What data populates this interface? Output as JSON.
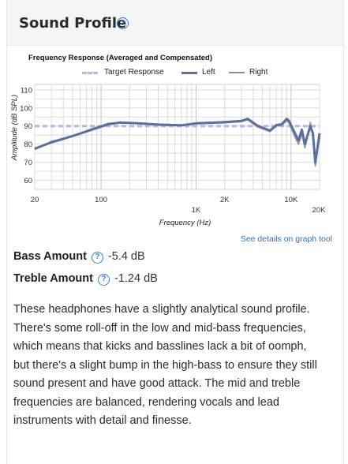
{
  "section": {
    "title": "Sound Profile",
    "help_icon": "question-circle-icon"
  },
  "chart_data": {
    "type": "line",
    "title": "Frequency Response (Averaged and Compensated)",
    "xlabel": "Frequency (Hz)",
    "ylabel": "Amplitude (dB SPL)",
    "x_scale": "log",
    "xlim": [
      20,
      20000
    ],
    "ylim": [
      55,
      113
    ],
    "x_ticks": [
      {
        "value": 20,
        "label": "20"
      },
      {
        "value": 100,
        "label": "100"
      },
      {
        "value": 1000,
        "label": "1K"
      },
      {
        "value": 2000,
        "label": "2K"
      },
      {
        "value": 10000,
        "label": "10K"
      },
      {
        "value": 20000,
        "label": "20K"
      }
    ],
    "y_ticks": [
      60,
      70,
      80,
      90,
      100,
      110
    ],
    "grid": true,
    "legend_position": "top",
    "series": [
      {
        "name": "Target Response",
        "color": "#b9b4ea",
        "style": "dashed",
        "points": [
          [
            20,
            90
          ],
          [
            100,
            90
          ],
          [
            1000,
            90
          ],
          [
            10000,
            90
          ],
          [
            20000,
            90
          ]
        ]
      },
      {
        "name": "Left",
        "color": "#5b6fa3",
        "style": "solid",
        "points": [
          [
            20,
            77.5
          ],
          [
            30,
            81
          ],
          [
            50,
            84.5
          ],
          [
            80,
            88
          ],
          [
            120,
            91
          ],
          [
            160,
            92
          ],
          [
            250,
            91.5
          ],
          [
            400,
            90.8
          ],
          [
            700,
            90.4
          ],
          [
            1000,
            91.5
          ],
          [
            2000,
            92.2
          ],
          [
            3000,
            92.8
          ],
          [
            3500,
            94
          ],
          [
            4500,
            90
          ],
          [
            6000,
            87.5
          ],
          [
            7000,
            90.5
          ],
          [
            8000,
            91
          ],
          [
            9000,
            94
          ],
          [
            9500,
            93
          ],
          [
            11000,
            86
          ],
          [
            12000,
            82
          ],
          [
            13000,
            88
          ],
          [
            14000,
            80
          ],
          [
            16000,
            90
          ],
          [
            17000,
            86
          ],
          [
            18000,
            70
          ],
          [
            19000,
            78
          ],
          [
            20000,
            86
          ]
        ]
      },
      {
        "name": "Right",
        "color": "#8d8d8d",
        "style": "solid",
        "points": [
          [
            20,
            77
          ],
          [
            30,
            81.5
          ],
          [
            50,
            84.5
          ],
          [
            80,
            88.5
          ],
          [
            120,
            91.5
          ],
          [
            160,
            91.7
          ],
          [
            250,
            91.3
          ],
          [
            400,
            90.6
          ],
          [
            700,
            90.2
          ],
          [
            1000,
            91.3
          ],
          [
            2000,
            91.8
          ],
          [
            3000,
            92.5
          ],
          [
            3500,
            93.5
          ],
          [
            4500,
            89.5
          ],
          [
            6000,
            87
          ],
          [
            7000,
            90
          ],
          [
            8000,
            90.5
          ],
          [
            9000,
            93
          ],
          [
            9500,
            92
          ],
          [
            11000,
            84
          ],
          [
            12000,
            80
          ],
          [
            13000,
            86
          ],
          [
            14000,
            78
          ],
          [
            16000,
            92
          ],
          [
            17000,
            84
          ],
          [
            18000,
            68
          ],
          [
            19000,
            76
          ],
          [
            20000,
            84
          ]
        ]
      }
    ]
  },
  "graph_tool_link": "See details on graph tool",
  "metrics": [
    {
      "label": "Bass Amount",
      "value": "-5.4 dB"
    },
    {
      "label": "Treble Amount",
      "value": "-1.24 dB"
    }
  ],
  "description": "These headphones have a slightly analytical sound profile. There's some roll-off in the low and mid-bass frequencies, which means that kicks and basslines lack a bit of oomph, but there's a slight bump in the high-bass to ensure they still sound present and have good attack. The mid and treble frequencies are balanced, rendering vocals and lead instruments with detail and finesse."
}
